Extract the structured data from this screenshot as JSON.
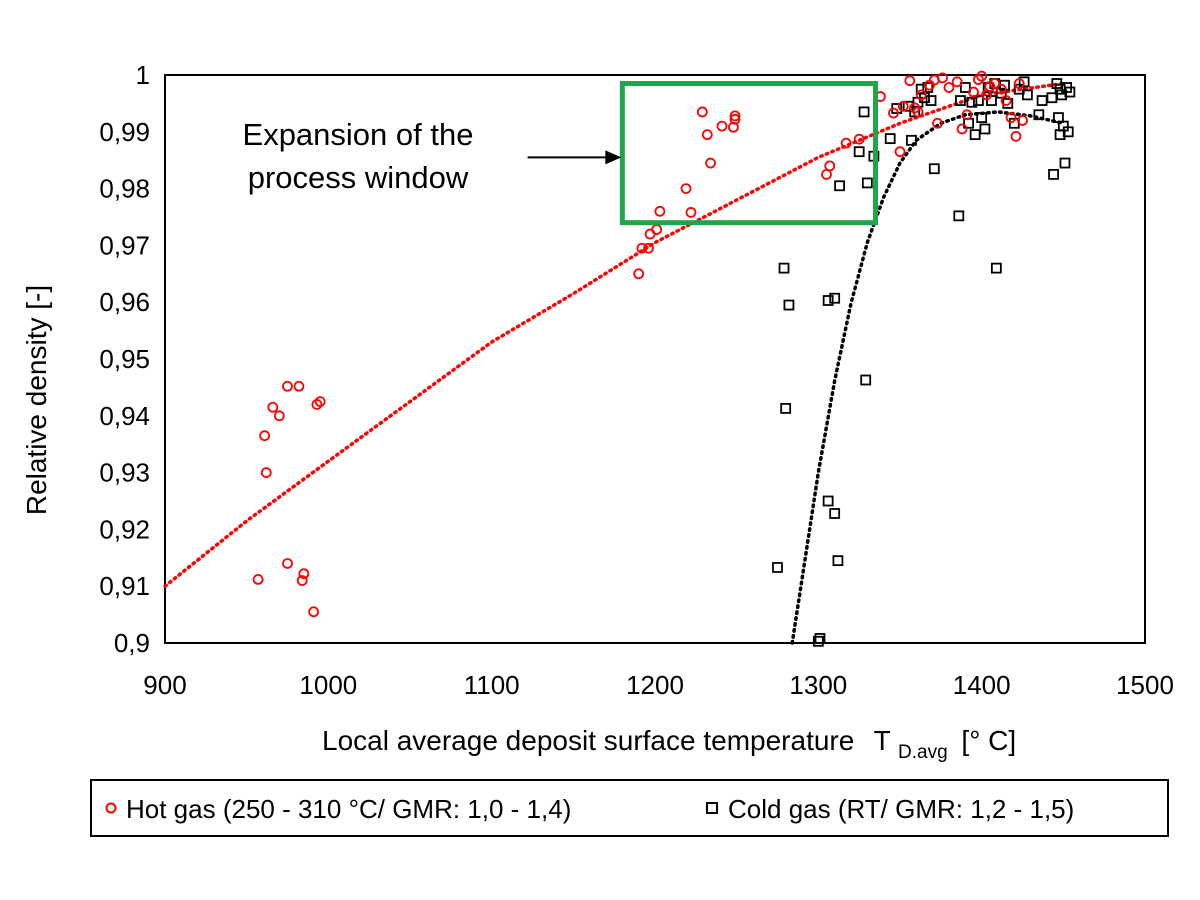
{
  "chart_data": {
    "type": "scatter",
    "xlabel": "Local average deposit surface temperature",
    "xlabel_symbol": "T",
    "xlabel_subscript": "D.avg",
    "xlabel_unit": "[° C]",
    "ylabel": "Relative density [-]",
    "xlim": [
      900,
      1500
    ],
    "ylim": [
      0.9,
      1.0
    ],
    "x_ticks": [
      900,
      1000,
      1100,
      1200,
      1300,
      1400,
      1500
    ],
    "x_tick_labels": [
      "900",
      "1000",
      "1100",
      "1200",
      "1300",
      "1400",
      "1500"
    ],
    "y_ticks": [
      0.9,
      0.91,
      0.92,
      0.93,
      0.94,
      0.95,
      0.96,
      0.97,
      0.98,
      0.99,
      1.0
    ],
    "y_tick_labels": [
      "0,9",
      "0,91",
      "0,92",
      "0,93",
      "0,94",
      "0,95",
      "0,96",
      "0,97",
      "0,98",
      "0,99",
      "1"
    ],
    "grid": false,
    "legend_position": "bottom",
    "colors": {
      "hot": "#ff0000",
      "cold": "#000000",
      "window": "#1fa64a"
    },
    "annotation": {
      "lines": [
        "Expansion of the",
        "process window"
      ],
      "box_x": [
        1180,
        1335
      ],
      "box_y": [
        0.974,
        0.9985
      ],
      "arrow_from": [
        1122,
        0.9855
      ],
      "arrow_to": [
        1180,
        0.9855
      ]
    },
    "series": [
      {
        "name": "Hot gas (250 - 310 °C/ GMR: 1,0 - 1,4)",
        "marker": "circle",
        "points": [
          [
            957,
            0.9112
          ],
          [
            961,
            0.9365
          ],
          [
            962,
            0.93
          ],
          [
            966,
            0.9415
          ],
          [
            970,
            0.94
          ],
          [
            975,
            0.9452
          ],
          [
            975,
            0.914
          ],
          [
            982,
            0.9452
          ],
          [
            984,
            0.911
          ],
          [
            985,
            0.9122
          ],
          [
            991,
            0.9055
          ],
          [
            993,
            0.942
          ],
          [
            995,
            0.9425
          ],
          [
            1190,
            0.965
          ],
          [
            1192,
            0.9695
          ],
          [
            1196,
            0.9695
          ],
          [
            1197,
            0.972
          ],
          [
            1201,
            0.9728
          ],
          [
            1203,
            0.976
          ],
          [
            1219,
            0.98
          ],
          [
            1222,
            0.9758
          ],
          [
            1229,
            0.9935
          ],
          [
            1232,
            0.9895
          ],
          [
            1234,
            0.9845
          ],
          [
            1241,
            0.991
          ],
          [
            1248,
            0.9908
          ],
          [
            1249,
            0.9928
          ],
          [
            1249,
            0.9922
          ],
          [
            1305,
            0.9825
          ],
          [
            1307,
            0.984
          ],
          [
            1317,
            0.988
          ],
          [
            1325,
            0.9887
          ],
          [
            1338,
            0.9962
          ],
          [
            1346,
            0.9933
          ],
          [
            1350,
            0.9865
          ],
          [
            1352,
            0.9945
          ],
          [
            1356,
            0.999
          ],
          [
            1359,
            0.9942
          ],
          [
            1361,
            0.9935
          ],
          [
            1363,
            0.9965
          ],
          [
            1368,
            0.9982
          ],
          [
            1371,
            0.9991
          ],
          [
            1373,
            0.9915
          ],
          [
            1376,
            0.9995
          ],
          [
            1380,
            0.9978
          ],
          [
            1385,
            0.9988
          ],
          [
            1388,
            0.9905
          ],
          [
            1391,
            0.993
          ],
          [
            1395,
            0.997
          ],
          [
            1398,
            0.9992
          ],
          [
            1400,
            0.9998
          ],
          [
            1403,
            0.9965
          ],
          [
            1405,
            0.998
          ],
          [
            1408,
            0.9985
          ],
          [
            1412,
            0.9975
          ],
          [
            1415,
            0.9955
          ],
          [
            1418,
            0.9925
          ],
          [
            1421,
            0.9892
          ],
          [
            1423,
            0.9985
          ],
          [
            1425,
            0.992
          ]
        ],
        "trend": [
          [
            900,
            0.91
          ],
          [
            950,
            0.9215
          ],
          [
            1000,
            0.932
          ],
          [
            1050,
            0.9425
          ],
          [
            1100,
            0.953
          ],
          [
            1150,
            0.9615
          ],
          [
            1200,
            0.9705
          ],
          [
            1250,
            0.978
          ],
          [
            1300,
            0.9855
          ],
          [
            1350,
            0.9915
          ],
          [
            1400,
            0.9965
          ],
          [
            1450,
            0.9985
          ]
        ]
      },
      {
        "name": "Cold gas (RT/ GMR: 1,2 - 1,5)",
        "marker": "square",
        "points": [
          [
            1275,
            0.9133
          ],
          [
            1279,
            0.966
          ],
          [
            1280,
            0.9413
          ],
          [
            1282,
            0.9595
          ],
          [
            1300,
            0.9003
          ],
          [
            1301,
            0.9008
          ],
          [
            1306,
            0.9603
          ],
          [
            1306,
            0.925
          ],
          [
            1310,
            0.9607
          ],
          [
            1310,
            0.9228
          ],
          [
            1312,
            0.9145
          ],
          [
            1313,
            0.9805
          ],
          [
            1325,
            0.9865
          ],
          [
            1328,
            0.9935
          ],
          [
            1329,
            0.9463
          ],
          [
            1330,
            0.981
          ],
          [
            1334,
            0.9857
          ],
          [
            1344,
            0.9888
          ],
          [
            1348,
            0.9941
          ],
          [
            1355,
            0.9945
          ],
          [
            1357,
            0.9885
          ],
          [
            1359,
            0.9935
          ],
          [
            1361,
            0.9952
          ],
          [
            1363,
            0.9975
          ],
          [
            1365,
            0.996
          ],
          [
            1367,
            0.9978
          ],
          [
            1369,
            0.9955
          ],
          [
            1371,
            0.9835
          ],
          [
            1386,
            0.9752
          ],
          [
            1387,
            0.9955
          ],
          [
            1390,
            0.9978
          ],
          [
            1392,
            0.9915
          ],
          [
            1394,
            0.9952
          ],
          [
            1396,
            0.9895
          ],
          [
            1398,
            0.9955
          ],
          [
            1400,
            0.9925
          ],
          [
            1402,
            0.9905
          ],
          [
            1404,
            0.9978
          ],
          [
            1406,
            0.9955
          ],
          [
            1408,
            0.9985
          ],
          [
            1409,
            0.966
          ],
          [
            1412,
            0.9968
          ],
          [
            1414,
            0.9982
          ],
          [
            1416,
            0.995
          ],
          [
            1420,
            0.9915
          ],
          [
            1423,
            0.9975
          ],
          [
            1426,
            0.9988
          ],
          [
            1428,
            0.9965
          ],
          [
            1435,
            0.993
          ],
          [
            1437,
            0.9955
          ],
          [
            1443,
            0.996
          ],
          [
            1444,
            0.9825
          ],
          [
            1446,
            0.9985
          ],
          [
            1447,
            0.9925
          ],
          [
            1448,
            0.9975
          ],
          [
            1448,
            0.9895
          ],
          [
            1449,
            0.9965
          ],
          [
            1450,
            0.991
          ],
          [
            1451,
            0.9845
          ],
          [
            1452,
            0.9978
          ],
          [
            1453,
            0.99
          ],
          [
            1454,
            0.997
          ]
        ],
        "trend": [
          [
            1284,
            0.9
          ],
          [
            1290,
            0.9112
          ],
          [
            1300,
            0.93
          ],
          [
            1310,
            0.9462
          ],
          [
            1320,
            0.9598
          ],
          [
            1330,
            0.9705
          ],
          [
            1340,
            0.9785
          ],
          [
            1350,
            0.9845
          ],
          [
            1360,
            0.9885
          ],
          [
            1375,
            0.9915
          ],
          [
            1390,
            0.993
          ],
          [
            1410,
            0.9935
          ],
          [
            1430,
            0.9928
          ],
          [
            1450,
            0.9915
          ]
        ]
      }
    ]
  }
}
